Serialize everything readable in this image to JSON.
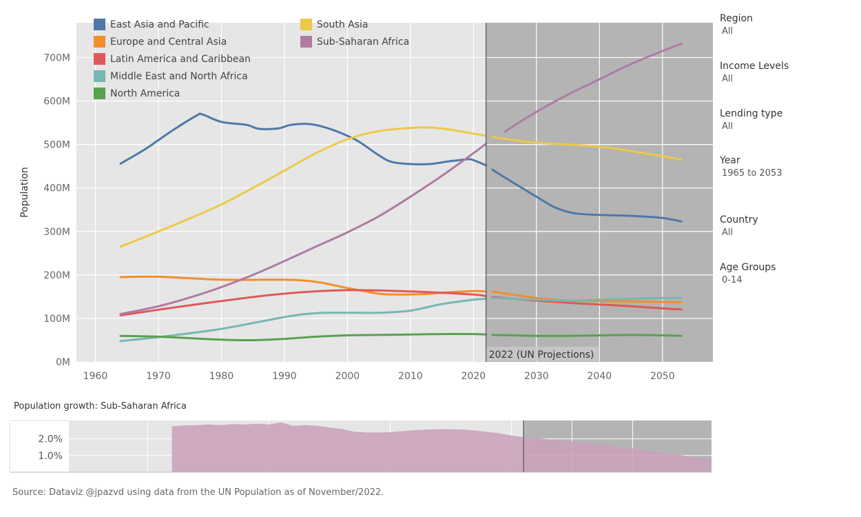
{
  "chart_data": [
    {
      "type": "line",
      "ylabel": "Population",
      "xlabel": "",
      "xlim": [
        1957,
        2058
      ],
      "ylim": [
        0,
        780000000
      ],
      "x_ticks": [
        1960,
        1970,
        1980,
        1990,
        2000,
        2010,
        2020,
        2030,
        2040,
        2050
      ],
      "x_tick_labels": [
        "1960",
        "1970",
        "1980",
        "1990",
        "2000",
        "2010",
        "2020",
        "2030",
        "2040",
        "2050"
      ],
      "y_ticks": [
        0,
        100000000,
        200000000,
        300000000,
        400000000,
        500000000,
        600000000,
        700000000
      ],
      "y_tick_labels": [
        "0M",
        "100M",
        "200M",
        "300M",
        "400M",
        "500M",
        "600M",
        "700M"
      ],
      "projection_start": 2022,
      "projection_label": "2022 (UN Projections)",
      "grid": true,
      "legend_position": "top-left",
      "series": [
        {
          "name": "East Asia and Pacific",
          "color": "#4e79a7",
          "points": [
            [
              1964,
              456
            ],
            [
              1968,
              490
            ],
            [
              1972,
              530
            ],
            [
              1976,
              566
            ],
            [
              1977,
              569
            ],
            [
              1980,
              552
            ],
            [
              1984,
              545
            ],
            [
              1986,
              536
            ],
            [
              1989,
              537
            ],
            [
              1991,
              545
            ],
            [
              1994,
              547
            ],
            [
              1997,
              537
            ],
            [
              2000,
              520
            ],
            [
              2002,
              505
            ],
            [
              2005,
              475
            ],
            [
              2007,
              460
            ],
            [
              2010,
              455
            ],
            [
              2013,
              455
            ],
            [
              2016,
              461
            ],
            [
              2019,
              466
            ],
            [
              2020,
              464
            ],
            [
              2022,
              452
            ],
            [
              2023,
              442
            ],
            [
              2026,
              415
            ],
            [
              2030,
              380
            ],
            [
              2033,
              355
            ],
            [
              2036,
              342
            ],
            [
              2040,
              338
            ],
            [
              2045,
              336
            ],
            [
              2050,
              331
            ],
            [
              2053,
              323
            ]
          ]
        },
        {
          "name": "Europe and Central Asia",
          "color": "#f28e2b",
          "points": [
            [
              1964,
              195
            ],
            [
              1970,
              196
            ],
            [
              1980,
              189
            ],
            [
              1990,
              189
            ],
            [
              1995,
              184
            ],
            [
              2000,
              170
            ],
            [
              2005,
              157
            ],
            [
              2008,
              155
            ],
            [
              2012,
              156
            ],
            [
              2016,
              160
            ],
            [
              2020,
              163
            ],
            [
              2022,
              162
            ],
            [
              2023,
              162
            ],
            [
              2030,
              147
            ],
            [
              2035,
              141
            ],
            [
              2040,
              140
            ],
            [
              2045,
              139
            ],
            [
              2050,
              138
            ],
            [
              2053,
              137
            ]
          ]
        },
        {
          "name": "Latin America and Caribbean",
          "color": "#e15759",
          "points": [
            [
              1964,
              107
            ],
            [
              1970,
              120
            ],
            [
              1980,
              140
            ],
            [
              1990,
              157
            ],
            [
              2000,
              165
            ],
            [
              2010,
              162
            ],
            [
              2020,
              155
            ],
            [
              2022,
              151
            ],
            [
              2023,
              149
            ],
            [
              2030,
              141
            ],
            [
              2035,
              136
            ],
            [
              2040,
              132
            ],
            [
              2045,
              128
            ],
            [
              2050,
              123
            ],
            [
              2053,
              121
            ]
          ]
        },
        {
          "name": "Middle East and North Africa",
          "color": "#76b7b2",
          "points": [
            [
              1964,
              48
            ],
            [
              1970,
              57
            ],
            [
              1980,
              76
            ],
            [
              1990,
              103
            ],
            [
              1995,
              112
            ],
            [
              2000,
              113
            ],
            [
              2005,
              113
            ],
            [
              2010,
              118
            ],
            [
              2015,
              133
            ],
            [
              2020,
              143
            ],
            [
              2022,
              145
            ],
            [
              2023,
              147
            ],
            [
              2030,
              143
            ],
            [
              2035,
              141
            ],
            [
              2040,
              143
            ],
            [
              2045,
              145
            ],
            [
              2050,
              147
            ],
            [
              2053,
              147
            ]
          ]
        },
        {
          "name": "North America",
          "color": "#59a14f",
          "points": [
            [
              1964,
              60
            ],
            [
              1970,
              58
            ],
            [
              1980,
              51
            ],
            [
              1985,
              50
            ],
            [
              1990,
              53
            ],
            [
              1995,
              58
            ],
            [
              2000,
              61
            ],
            [
              2005,
              62
            ],
            [
              2010,
              63
            ],
            [
              2015,
              64
            ],
            [
              2020,
              64
            ],
            [
              2022,
              63
            ],
            [
              2023,
              62
            ],
            [
              2030,
              60
            ],
            [
              2035,
              60
            ],
            [
              2040,
              61
            ],
            [
              2045,
              62
            ],
            [
              2050,
              61
            ],
            [
              2053,
              60
            ]
          ]
        },
        {
          "name": "South Asia",
          "color": "#edc948",
          "points": [
            [
              1964,
              265
            ],
            [
              1970,
              300
            ],
            [
              1975,
              330
            ],
            [
              1980,
              362
            ],
            [
              1985,
              400
            ],
            [
              1990,
              440
            ],
            [
              1995,
              480
            ],
            [
              2000,
              512
            ],
            [
              2005,
              531
            ],
            [
              2010,
              538
            ],
            [
              2013,
              539
            ],
            [
              2016,
              535
            ],
            [
              2020,
              525
            ],
            [
              2022,
              520
            ],
            [
              2023,
              517
            ],
            [
              2027,
              509
            ],
            [
              2030,
              504
            ],
            [
              2035,
              500
            ],
            [
              2040,
              495
            ],
            [
              2045,
              485
            ],
            [
              2050,
              473
            ],
            [
              2053,
              465
            ]
          ]
        },
        {
          "name": "Sub-Saharan Africa",
          "color": "#b07aa1",
          "points": [
            [
              1964,
              110
            ],
            [
              1970,
              128
            ],
            [
              1975,
              148
            ],
            [
              1980,
              172
            ],
            [
              1985,
              200
            ],
            [
              1990,
              232
            ],
            [
              1995,
              265
            ],
            [
              2000,
              298
            ],
            [
              2005,
              335
            ],
            [
              2010,
              380
            ],
            [
              2015,
              428
            ],
            [
              2020,
              480
            ],
            [
              2022,
              502
            ],
            [
              2025,
              530
            ],
            [
              2030,
              575
            ],
            [
              2035,
              615
            ],
            [
              2040,
              650
            ],
            [
              2045,
              685
            ],
            [
              2050,
              715
            ],
            [
              2053,
              732
            ]
          ]
        }
      ]
    },
    {
      "type": "area",
      "title": "Population growth: Sub-Saharan Africa",
      "xlim": [
        1947,
        2053
      ],
      "ylim": [
        0,
        3.1
      ],
      "y_ticks": [
        1.0,
        2.0
      ],
      "y_tick_labels": [
        "1.0%",
        "2.0%"
      ],
      "color": "#c9a2b9",
      "points": [
        [
          1964,
          2.75
        ],
        [
          1966,
          2.8
        ],
        [
          1968,
          2.82
        ],
        [
          1970,
          2.86
        ],
        [
          1972,
          2.82
        ],
        [
          1974,
          2.88
        ],
        [
          1976,
          2.86
        ],
        [
          1978,
          2.9
        ],
        [
          1980,
          2.86
        ],
        [
          1982,
          2.98
        ],
        [
          1984,
          2.78
        ],
        [
          1986,
          2.82
        ],
        [
          1988,
          2.78
        ],
        [
          1990,
          2.68
        ],
        [
          1992,
          2.6
        ],
        [
          1994,
          2.43
        ],
        [
          1996,
          2.38
        ],
        [
          1998,
          2.38
        ],
        [
          2000,
          2.4
        ],
        [
          2002,
          2.46
        ],
        [
          2004,
          2.52
        ],
        [
          2006,
          2.56
        ],
        [
          2008,
          2.58
        ],
        [
          2010,
          2.58
        ],
        [
          2012,
          2.56
        ],
        [
          2014,
          2.5
        ],
        [
          2016,
          2.42
        ],
        [
          2018,
          2.33
        ],
        [
          2020,
          2.2
        ],
        [
          2022,
          2.1
        ],
        [
          2024,
          2.06
        ],
        [
          2028,
          1.9
        ],
        [
          2032,
          1.78
        ],
        [
          2036,
          1.6
        ],
        [
          2040,
          1.42
        ],
        [
          2044,
          1.22
        ],
        [
          2048,
          1.02
        ],
        [
          2050,
          0.9
        ],
        [
          2053,
          0.75
        ]
      ]
    }
  ],
  "filters": [
    {
      "label": "Region",
      "value": "All"
    },
    {
      "label": "Income Levels",
      "value": "All"
    },
    {
      "label": "Lending type",
      "value": "All"
    },
    {
      "label": "Year",
      "value": "1965 to 2053"
    },
    {
      "label": "Country",
      "value": "All"
    },
    {
      "label": "Age Groups",
      "value": "0-14"
    }
  ],
  "growth_title": "Population growth: Sub-Saharan Africa",
  "source": "Source: Dataviz @jpazvd using data from the UN Population as of November/2022."
}
